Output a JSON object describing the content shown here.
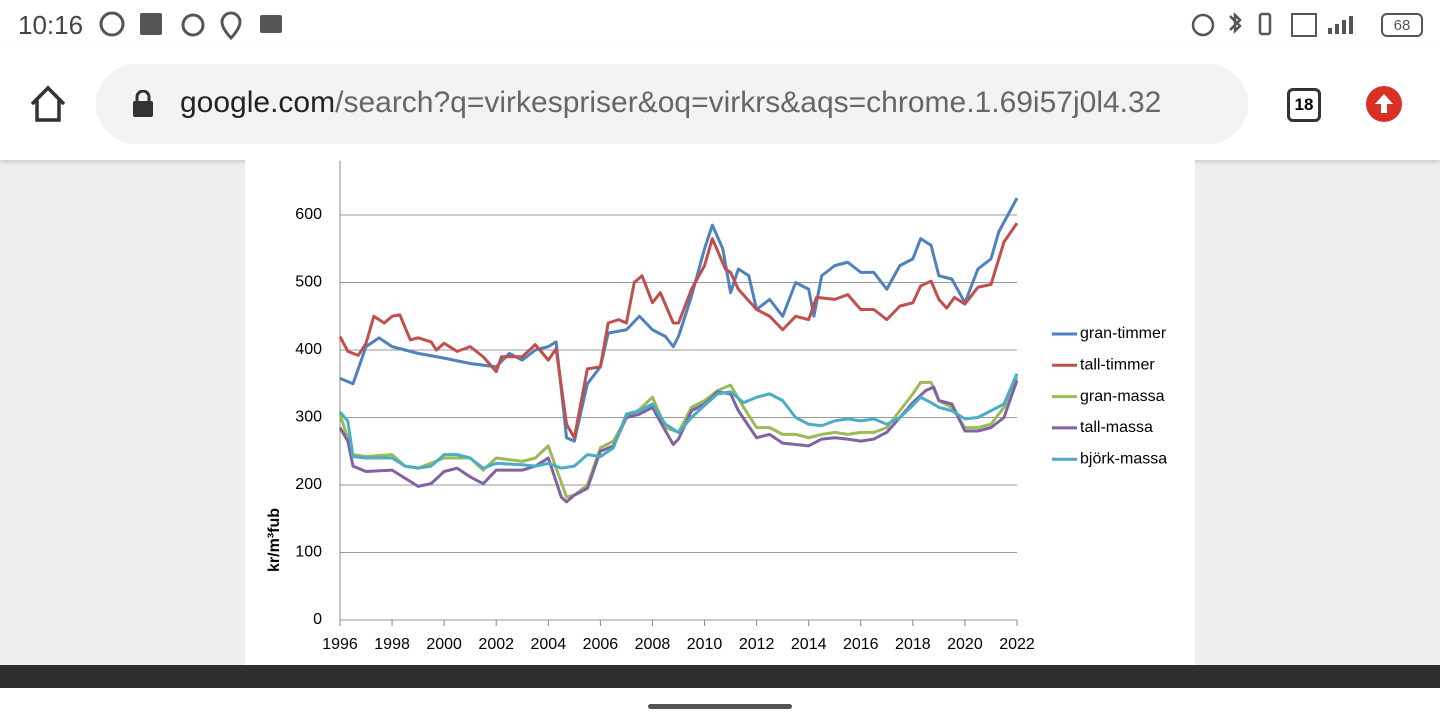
{
  "status_bar": {
    "time": "10:16",
    "battery": "68"
  },
  "address_bar": {
    "domain": "google.com",
    "path": "/search?q=virkespriser&oq=virkrs&aqs=chrome.1.69i57j0l4.32",
    "tab_count": "18"
  },
  "chart_data": {
    "type": "line",
    "y_label": "kr/m³fub",
    "xlim": [
      1996,
      2022
    ],
    "xticks": [
      1996,
      1998,
      2000,
      2002,
      2004,
      2006,
      2008,
      2010,
      2012,
      2014,
      2016,
      2018,
      2020,
      2022
    ],
    "ylim": [
      0,
      680
    ],
    "yticks": [
      0,
      100,
      200,
      300,
      400,
      500,
      600
    ],
    "grid": true,
    "legend": "right",
    "series": [
      {
        "name": "gran-timmer",
        "color": "#4f81bd",
        "x": [
          1996,
          1996.5,
          1997,
          1997.5,
          1998,
          1998.5,
          1999,
          2000,
          2001,
          2002,
          2002.5,
          2003,
          2003.5,
          2004,
          2004.3,
          2004.7,
          2005,
          2005.5,
          2006,
          2006.3,
          2007,
          2007.5,
          2008,
          2008.5,
          2008.8,
          2009,
          2009.5,
          2010,
          2010.3,
          2010.7,
          2011,
          2011.3,
          2011.7,
          2012,
          2012.5,
          2013,
          2013.5,
          2014,
          2014.2,
          2014.5,
          2015,
          2015.5,
          2016,
          2016.5,
          2017,
          2017.5,
          2018,
          2018.3,
          2018.7,
          2019,
          2019.5,
          2020,
          2020.5,
          2021,
          2021.3,
          2022
        ],
        "values": [
          358,
          350,
          405,
          418,
          405,
          400,
          395,
          388,
          380,
          375,
          395,
          385,
          400,
          405,
          412,
          270,
          265,
          350,
          375,
          425,
          430,
          450,
          430,
          420,
          405,
          420,
          480,
          550,
          585,
          550,
          485,
          520,
          510,
          460,
          475,
          450,
          500,
          490,
          450,
          510,
          525,
          530,
          515,
          515,
          490,
          525,
          535,
          565,
          555,
          510,
          505,
          470,
          520,
          535,
          575,
          625
        ]
      },
      {
        "name": "tall-timmer",
        "color": "#c0504d",
        "x": [
          1996,
          1996.3,
          1996.7,
          1997,
          1997.3,
          1997.7,
          1998,
          1998.3,
          1998.7,
          1999,
          1999.5,
          1999.7,
          2000,
          2000.5,
          2001,
          2001.5,
          2002,
          2002.2,
          2003,
          2003.5,
          2004,
          2004.3,
          2004.7,
          2005,
          2005.5,
          2006,
          2006.3,
          2006.7,
          2007,
          2007.3,
          2007.6,
          2008,
          2008.3,
          2008.8,
          2009,
          2009.5,
          2010,
          2010.3,
          2010.8,
          2011,
          2011.3,
          2012,
          2012.5,
          2013,
          2013.5,
          2014,
          2014.3,
          2015,
          2015.5,
          2016,
          2016.5,
          2017,
          2017.5,
          2018,
          2018.3,
          2018.7,
          2019,
          2019.3,
          2019.6,
          2020,
          2020.5,
          2021,
          2021.5,
          2022
        ],
        "values": [
          420,
          398,
          392,
          410,
          450,
          440,
          450,
          452,
          415,
          418,
          412,
          400,
          410,
          398,
          405,
          390,
          368,
          390,
          390,
          408,
          385,
          402,
          290,
          270,
          372,
          375,
          440,
          445,
          440,
          500,
          510,
          470,
          485,
          440,
          440,
          490,
          525,
          565,
          520,
          515,
          490,
          460,
          450,
          430,
          450,
          445,
          478,
          475,
          482,
          460,
          460,
          445,
          465,
          470,
          495,
          502,
          475,
          462,
          478,
          468,
          493,
          497,
          560,
          588
        ]
      },
      {
        "name": "gran-massa",
        "color": "#9bbb59",
        "x": [
          1996,
          1996.5,
          1997,
          1998,
          1998.5,
          1999,
          2000,
          2001,
          2001.5,
          2002,
          2003,
          2003.5,
          2004,
          2004.7,
          2005,
          2005.5,
          2006,
          2006.5,
          2007,
          2007.5,
          2008,
          2008.5,
          2009,
          2009.5,
          2010,
          2010.5,
          2011,
          2011.5,
          2012,
          2012.5,
          2013,
          2013.5,
          2014,
          2014.5,
          2015,
          2015.5,
          2016,
          2016.5,
          2017,
          2017.5,
          2018,
          2018.3,
          2018.7,
          2019,
          2019.5,
          2020,
          2020.5,
          2021,
          2021.5,
          2022
        ],
        "values": [
          305,
          245,
          242,
          245,
          228,
          225,
          240,
          240,
          222,
          240,
          235,
          240,
          258,
          182,
          185,
          200,
          255,
          265,
          300,
          312,
          330,
          285,
          278,
          315,
          325,
          340,
          348,
          315,
          285,
          285,
          275,
          275,
          270,
          275,
          278,
          275,
          278,
          278,
          285,
          310,
          335,
          352,
          352,
          325,
          315,
          285,
          285,
          290,
          315,
          360
        ]
      },
      {
        "name": "tall-massa",
        "color": "#8064a2",
        "x": [
          1996,
          1996.3,
          1996.5,
          1997,
          1998,
          1998.5,
          1999,
          1999.5,
          2000,
          2000.5,
          2001,
          2001.5,
          2002,
          2003,
          2003.5,
          2004,
          2004.5,
          2004.7,
          2005,
          2005.5,
          2006,
          2006.5,
          2007,
          2007.5,
          2008,
          2008.5,
          2008.8,
          2009,
          2009.5,
          2010,
          2010.5,
          2011,
          2011.3,
          2012,
          2012.5,
          2013,
          2013.5,
          2014,
          2014.5,
          2015,
          2015.5,
          2016,
          2016.5,
          2017,
          2017.5,
          2018,
          2018.5,
          2018.8,
          2019,
          2019.5,
          2020,
          2020.5,
          2021,
          2021.5,
          2022
        ],
        "values": [
          285,
          265,
          228,
          220,
          222,
          210,
          198,
          202,
          220,
          225,
          212,
          202,
          222,
          222,
          228,
          240,
          182,
          175,
          185,
          195,
          250,
          258,
          300,
          305,
          315,
          280,
          260,
          268,
          310,
          320,
          338,
          335,
          310,
          270,
          275,
          262,
          260,
          258,
          268,
          270,
          268,
          265,
          268,
          278,
          300,
          322,
          340,
          345,
          325,
          320,
          280,
          280,
          285,
          300,
          355
        ]
      },
      {
        "name": "björk-massa",
        "color": "#4bacc6",
        "x": [
          1996,
          1996.3,
          1996.5,
          1997,
          1998,
          1998.5,
          1999,
          1999.5,
          2000,
          2000.5,
          2001,
          2001.5,
          2002,
          2003,
          2003.5,
          2004,
          2004.5,
          2005,
          2005.5,
          2006,
          2006.5,
          2007,
          2007.5,
          2008,
          2008.5,
          2009,
          2009.5,
          2010,
          2010.5,
          2011,
          2011.5,
          2012,
          2012.5,
          2013,
          2013.5,
          2014,
          2014.5,
          2015,
          2015.5,
          2016,
          2016.5,
          2017,
          2017.5,
          2018,
          2018.3,
          2018.7,
          2019,
          2019.5,
          2020,
          2020.5,
          2021,
          2021.5,
          2022
        ],
        "values": [
          308,
          295,
          242,
          240,
          240,
          228,
          225,
          228,
          245,
          245,
          240,
          225,
          232,
          230,
          228,
          232,
          225,
          228,
          245,
          242,
          255,
          305,
          310,
          320,
          290,
          278,
          300,
          318,
          335,
          338,
          322,
          330,
          335,
          325,
          300,
          290,
          288,
          295,
          298,
          295,
          298,
          290,
          300,
          318,
          330,
          322,
          315,
          310,
          298,
          300,
          310,
          320,
          365
        ]
      }
    ]
  }
}
